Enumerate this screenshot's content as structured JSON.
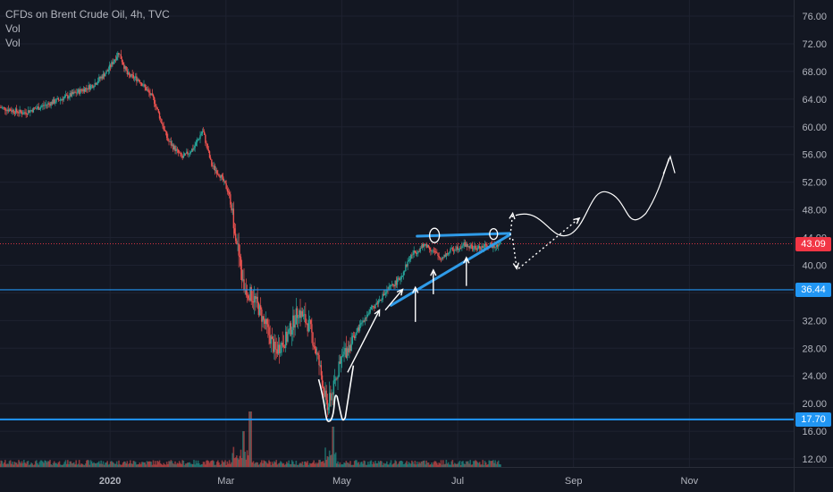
{
  "legend": {
    "symbol": "CFDs on Brent Crude Oil, 4h, TVC",
    "vol1": "Vol",
    "vol2": "Vol"
  },
  "colors": {
    "background": "#131722",
    "up": "#26a69a",
    "down": "#ef5350",
    "blue_line": "#2196f3",
    "red_line": "#f23645",
    "annotation": "#ffffff",
    "trend": "#2f9be8"
  },
  "chart_data": {
    "type": "candlestick",
    "title": "CFDs on Brent Crude Oil, 4h, TVC",
    "y_ticks": [
      "76.00",
      "72.00",
      "68.00",
      "64.00",
      "60.00",
      "56.00",
      "52.00",
      "48.00",
      "44.00",
      "40.00",
      "36.00",
      "32.00",
      "28.00",
      "24.00",
      "20.00",
      "16.00",
      "12.00"
    ],
    "y_range": [
      10,
      78
    ],
    "x_ticks": [
      "2020",
      "Mar",
      "May",
      "Jul",
      "Sep",
      "Nov"
    ],
    "x_tick_months": [
      0,
      2,
      4,
      6,
      8,
      10
    ],
    "x_range_months": [
      -1.9,
      11.8
    ],
    "price_path": [
      [
        -1.9,
        62.8
      ],
      [
        -1.5,
        62.0
      ],
      [
        -1.1,
        63.2
      ],
      [
        -0.7,
        64.5
      ],
      [
        -0.3,
        66.0
      ],
      [
        -0.05,
        68.0
      ],
      [
        0.15,
        70.8
      ],
      [
        0.3,
        67.5
      ],
      [
        0.5,
        66.8
      ],
      [
        0.75,
        64.0
      ],
      [
        1.0,
        58.0
      ],
      [
        1.25,
        55.5
      ],
      [
        1.45,
        57.0
      ],
      [
        1.6,
        59.5
      ],
      [
        1.75,
        54.5
      ],
      [
        1.9,
        53.0
      ],
      [
        2.05,
        50.5
      ],
      [
        2.15,
        45.5
      ],
      [
        2.3,
        37.0
      ],
      [
        2.5,
        35.0
      ],
      [
        2.7,
        31.0
      ],
      [
        2.85,
        27.5
      ],
      [
        3.05,
        29.5
      ],
      [
        3.25,
        33.5
      ],
      [
        3.45,
        31.0
      ],
      [
        3.6,
        26.0
      ],
      [
        3.75,
        19.5
      ],
      [
        3.85,
        22.0
      ],
      [
        4.0,
        26.5
      ],
      [
        4.2,
        29.5
      ],
      [
        4.4,
        32.5
      ],
      [
        4.6,
        34.5
      ],
      [
        4.8,
        36.5
      ],
      [
        5.0,
        38.0
      ],
      [
        5.2,
        41.5
      ],
      [
        5.45,
        43.0
      ],
      [
        5.7,
        41.0
      ],
      [
        5.9,
        42.2
      ],
      [
        6.1,
        43.0
      ],
      [
        6.3,
        42.4
      ],
      [
        6.55,
        42.8
      ],
      [
        6.75,
        43.1
      ]
    ],
    "horizontal_levels": [
      {
        "label": "43.09",
        "value": 43.09,
        "color": "#f23645",
        "style": "dotted"
      },
      {
        "label": "36.44",
        "value": 36.44,
        "color": "#2196f3",
        "style": "solid"
      },
      {
        "label": "17.70",
        "value": 17.7,
        "color": "#2196f3",
        "style": "solid"
      }
    ]
  }
}
